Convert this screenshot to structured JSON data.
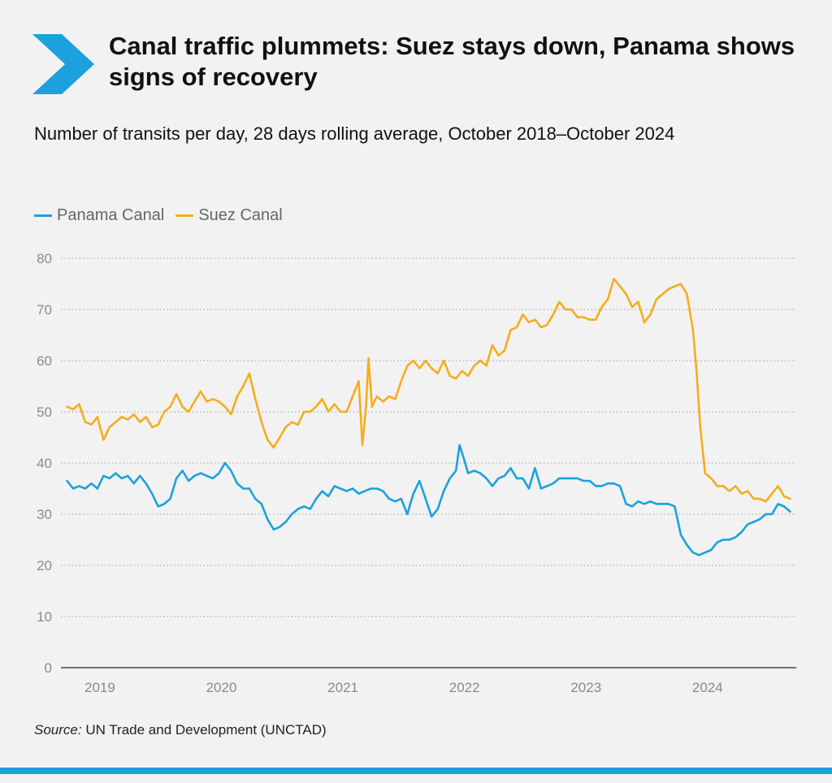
{
  "header": {
    "title": "Canal traffic plummets: Suez stays down, Panama shows signs of recovery",
    "subtitle": "Number of transits per day, 28 days rolling average, October 2018–October 2024"
  },
  "legend": {
    "items": [
      {
        "label": "Panama Canal",
        "color": "#1ba1dd"
      },
      {
        "label": "Suez Canal",
        "color": "#f7ac1c"
      }
    ]
  },
  "source": {
    "label": "Source:",
    "text": "UN Trade and Development (UNCTAD)"
  },
  "colors": {
    "accent": "#1ba1dd",
    "panama": "#1ba1dd",
    "suez": "#f7ac1c"
  },
  "chart_data": {
    "type": "line",
    "title": "Canal traffic plummets: Suez stays down, Panama shows signs of recovery",
    "subtitle": "Number of transits per day, 28 days rolling average, October 2018–October 2024",
    "xlabel": "",
    "ylabel": "",
    "xlim": [
      2018.8,
      2024.85
    ],
    "ylim": [
      0,
      80
    ],
    "yticks": [
      0,
      10,
      20,
      30,
      40,
      50,
      60,
      70,
      80
    ],
    "xticks": [
      2019,
      2020,
      2021,
      2022,
      2023,
      2024
    ],
    "xtick_labels": [
      "2019",
      "2020",
      "2021",
      "2022",
      "2023",
      "2024"
    ],
    "grid": "horizontal dotted",
    "legend_position": "top-left",
    "series": [
      {
        "name": "Panama Canal",
        "color": "#1ba1dd",
        "points": [
          [
            2018.85,
            36.5
          ],
          [
            2018.9,
            35
          ],
          [
            2018.95,
            35.5
          ],
          [
            2019.0,
            35
          ],
          [
            2019.05,
            36
          ],
          [
            2019.1,
            35
          ],
          [
            2019.15,
            37.5
          ],
          [
            2019.2,
            37
          ],
          [
            2019.25,
            38
          ],
          [
            2019.3,
            37
          ],
          [
            2019.35,
            37.5
          ],
          [
            2019.4,
            36
          ],
          [
            2019.45,
            37.5
          ],
          [
            2019.5,
            36
          ],
          [
            2019.55,
            34
          ],
          [
            2019.6,
            31.5
          ],
          [
            2019.65,
            32
          ],
          [
            2019.7,
            33
          ],
          [
            2019.75,
            37
          ],
          [
            2019.8,
            38.5
          ],
          [
            2019.85,
            36.5
          ],
          [
            2019.9,
            37.5
          ],
          [
            2019.95,
            38
          ],
          [
            2020.0,
            37.5
          ],
          [
            2020.05,
            37
          ],
          [
            2020.1,
            38
          ],
          [
            2020.15,
            40
          ],
          [
            2020.2,
            38.5
          ],
          [
            2020.25,
            36
          ],
          [
            2020.3,
            35
          ],
          [
            2020.35,
            35
          ],
          [
            2020.4,
            33
          ],
          [
            2020.45,
            32
          ],
          [
            2020.5,
            29
          ],
          [
            2020.55,
            27
          ],
          [
            2020.6,
            27.5
          ],
          [
            2020.65,
            28.5
          ],
          [
            2020.7,
            30
          ],
          [
            2020.75,
            31
          ],
          [
            2020.8,
            31.5
          ],
          [
            2020.85,
            31
          ],
          [
            2020.9,
            33
          ],
          [
            2020.95,
            34.5
          ],
          [
            2021.0,
            33.5
          ],
          [
            2021.05,
            35.5
          ],
          [
            2021.1,
            35
          ],
          [
            2021.15,
            34.5
          ],
          [
            2021.2,
            35
          ],
          [
            2021.25,
            34
          ],
          [
            2021.3,
            34.5
          ],
          [
            2021.35,
            35
          ],
          [
            2021.4,
            35
          ],
          [
            2021.45,
            34.5
          ],
          [
            2021.5,
            33
          ],
          [
            2021.55,
            32.5
          ],
          [
            2021.6,
            33
          ],
          [
            2021.65,
            30
          ],
          [
            2021.7,
            34
          ],
          [
            2021.75,
            36.5
          ],
          [
            2021.8,
            33
          ],
          [
            2021.85,
            29.5
          ],
          [
            2021.9,
            31
          ],
          [
            2021.95,
            34.5
          ],
          [
            2022.0,
            37
          ],
          [
            2022.05,
            38.5
          ],
          [
            2022.08,
            43.5
          ],
          [
            2022.12,
            40.5
          ],
          [
            2022.15,
            38
          ],
          [
            2022.2,
            38.5
          ],
          [
            2022.25,
            38
          ],
          [
            2022.3,
            37
          ],
          [
            2022.35,
            35.5
          ],
          [
            2022.4,
            37
          ],
          [
            2022.45,
            37.5
          ],
          [
            2022.5,
            39
          ],
          [
            2022.55,
            37
          ],
          [
            2022.6,
            37
          ],
          [
            2022.65,
            35
          ],
          [
            2022.7,
            39
          ],
          [
            2022.75,
            35
          ],
          [
            2022.8,
            35.5
          ],
          [
            2022.85,
            36
          ],
          [
            2022.9,
            37
          ],
          [
            2022.95,
            37
          ],
          [
            2023.0,
            37
          ],
          [
            2023.05,
            37
          ],
          [
            2023.1,
            36.5
          ],
          [
            2023.15,
            36.5
          ],
          [
            2023.2,
            35.5
          ],
          [
            2023.25,
            35.5
          ],
          [
            2023.3,
            36
          ],
          [
            2023.35,
            36
          ],
          [
            2023.4,
            35.5
          ],
          [
            2023.45,
            32
          ],
          [
            2023.5,
            31.5
          ],
          [
            2023.55,
            32.5
          ],
          [
            2023.6,
            32
          ],
          [
            2023.65,
            32.5
          ],
          [
            2023.7,
            32
          ],
          [
            2023.75,
            32
          ],
          [
            2023.8,
            32
          ],
          [
            2023.85,
            31.5
          ],
          [
            2023.9,
            26
          ],
          [
            2023.95,
            24
          ],
          [
            2024.0,
            22.5
          ],
          [
            2024.05,
            22
          ],
          [
            2024.1,
            22.5
          ],
          [
            2024.15,
            23
          ],
          [
            2024.2,
            24.5
          ],
          [
            2024.25,
            25
          ],
          [
            2024.3,
            25
          ],
          [
            2024.35,
            25.5
          ],
          [
            2024.4,
            26.5
          ],
          [
            2024.45,
            28
          ],
          [
            2024.5,
            28.5
          ],
          [
            2024.55,
            29
          ],
          [
            2024.6,
            30
          ],
          [
            2024.65,
            30
          ],
          [
            2024.7,
            32
          ],
          [
            2024.75,
            31.5
          ],
          [
            2024.8,
            30.5
          ]
        ]
      },
      {
        "name": "Suez Canal",
        "color": "#f7ac1c",
        "points": [
          [
            2018.85,
            51
          ],
          [
            2018.9,
            50.5
          ],
          [
            2018.95,
            51.5
          ],
          [
            2019.0,
            48
          ],
          [
            2019.05,
            47.5
          ],
          [
            2019.1,
            49
          ],
          [
            2019.15,
            44.5
          ],
          [
            2019.2,
            47
          ],
          [
            2019.25,
            48
          ],
          [
            2019.3,
            49
          ],
          [
            2019.35,
            48.5
          ],
          [
            2019.4,
            49.5
          ],
          [
            2019.45,
            48
          ],
          [
            2019.5,
            49
          ],
          [
            2019.55,
            47
          ],
          [
            2019.6,
            47.5
          ],
          [
            2019.65,
            50
          ],
          [
            2019.7,
            51
          ],
          [
            2019.75,
            53.5
          ],
          [
            2019.8,
            51
          ],
          [
            2019.85,
            50
          ],
          [
            2019.9,
            52
          ],
          [
            2019.95,
            54
          ],
          [
            2020.0,
            52
          ],
          [
            2020.05,
            52.5
          ],
          [
            2020.1,
            52
          ],
          [
            2020.15,
            51
          ],
          [
            2020.2,
            49.5
          ],
          [
            2020.25,
            53
          ],
          [
            2020.3,
            55
          ],
          [
            2020.35,
            57.5
          ],
          [
            2020.4,
            52.5
          ],
          [
            2020.45,
            48
          ],
          [
            2020.5,
            44.5
          ],
          [
            2020.55,
            43
          ],
          [
            2020.6,
            45
          ],
          [
            2020.65,
            47
          ],
          [
            2020.7,
            48
          ],
          [
            2020.75,
            47.5
          ],
          [
            2020.8,
            50
          ],
          [
            2020.85,
            50
          ],
          [
            2020.9,
            51
          ],
          [
            2020.95,
            52.5
          ],
          [
            2021.0,
            50
          ],
          [
            2021.05,
            51.5
          ],
          [
            2021.1,
            50
          ],
          [
            2021.15,
            50
          ],
          [
            2021.2,
            53
          ],
          [
            2021.25,
            56
          ],
          [
            2021.28,
            43.5
          ],
          [
            2021.31,
            51
          ],
          [
            2021.33,
            60.5
          ],
          [
            2021.36,
            51
          ],
          [
            2021.4,
            53
          ],
          [
            2021.45,
            52
          ],
          [
            2021.5,
            53
          ],
          [
            2021.55,
            52.5
          ],
          [
            2021.6,
            56
          ],
          [
            2021.65,
            59
          ],
          [
            2021.7,
            60
          ],
          [
            2021.75,
            58.5
          ],
          [
            2021.8,
            60
          ],
          [
            2021.85,
            58.5
          ],
          [
            2021.9,
            57.5
          ],
          [
            2021.95,
            60
          ],
          [
            2022.0,
            57
          ],
          [
            2022.05,
            56.5
          ],
          [
            2022.1,
            58
          ],
          [
            2022.15,
            57
          ],
          [
            2022.2,
            59
          ],
          [
            2022.25,
            60
          ],
          [
            2022.3,
            59
          ],
          [
            2022.35,
            63
          ],
          [
            2022.4,
            61
          ],
          [
            2022.45,
            62
          ],
          [
            2022.5,
            66
          ],
          [
            2022.55,
            66.5
          ],
          [
            2022.6,
            69
          ],
          [
            2022.65,
            67.5
          ],
          [
            2022.7,
            68
          ],
          [
            2022.75,
            66.5
          ],
          [
            2022.8,
            67
          ],
          [
            2022.85,
            69
          ],
          [
            2022.9,
            71.5
          ],
          [
            2022.95,
            70
          ],
          [
            2023.0,
            70
          ],
          [
            2023.05,
            68.5
          ],
          [
            2023.1,
            68.5
          ],
          [
            2023.15,
            68
          ],
          [
            2023.2,
            68
          ],
          [
            2023.25,
            70.5
          ],
          [
            2023.3,
            72
          ],
          [
            2023.35,
            76
          ],
          [
            2023.4,
            74.5
          ],
          [
            2023.45,
            73
          ],
          [
            2023.5,
            70.5
          ],
          [
            2023.55,
            71.5
          ],
          [
            2023.6,
            67.5
          ],
          [
            2023.65,
            69
          ],
          [
            2023.7,
            72
          ],
          [
            2023.75,
            73
          ],
          [
            2023.8,
            74
          ],
          [
            2023.85,
            74.5
          ],
          [
            2023.9,
            75
          ],
          [
            2023.95,
            73
          ],
          [
            2024.0,
            66
          ],
          [
            2024.03,
            58
          ],
          [
            2024.06,
            47
          ],
          [
            2024.1,
            38
          ],
          [
            2024.15,
            37
          ],
          [
            2024.2,
            35.5
          ],
          [
            2024.25,
            35.5
          ],
          [
            2024.3,
            34.5
          ],
          [
            2024.35,
            35.5
          ],
          [
            2024.4,
            34
          ],
          [
            2024.45,
            34.5
          ],
          [
            2024.5,
            33
          ],
          [
            2024.55,
            33
          ],
          [
            2024.6,
            32.5
          ],
          [
            2024.65,
            34
          ],
          [
            2024.7,
            35.5
          ],
          [
            2024.75,
            33.5
          ],
          [
            2024.8,
            33
          ]
        ]
      }
    ]
  }
}
